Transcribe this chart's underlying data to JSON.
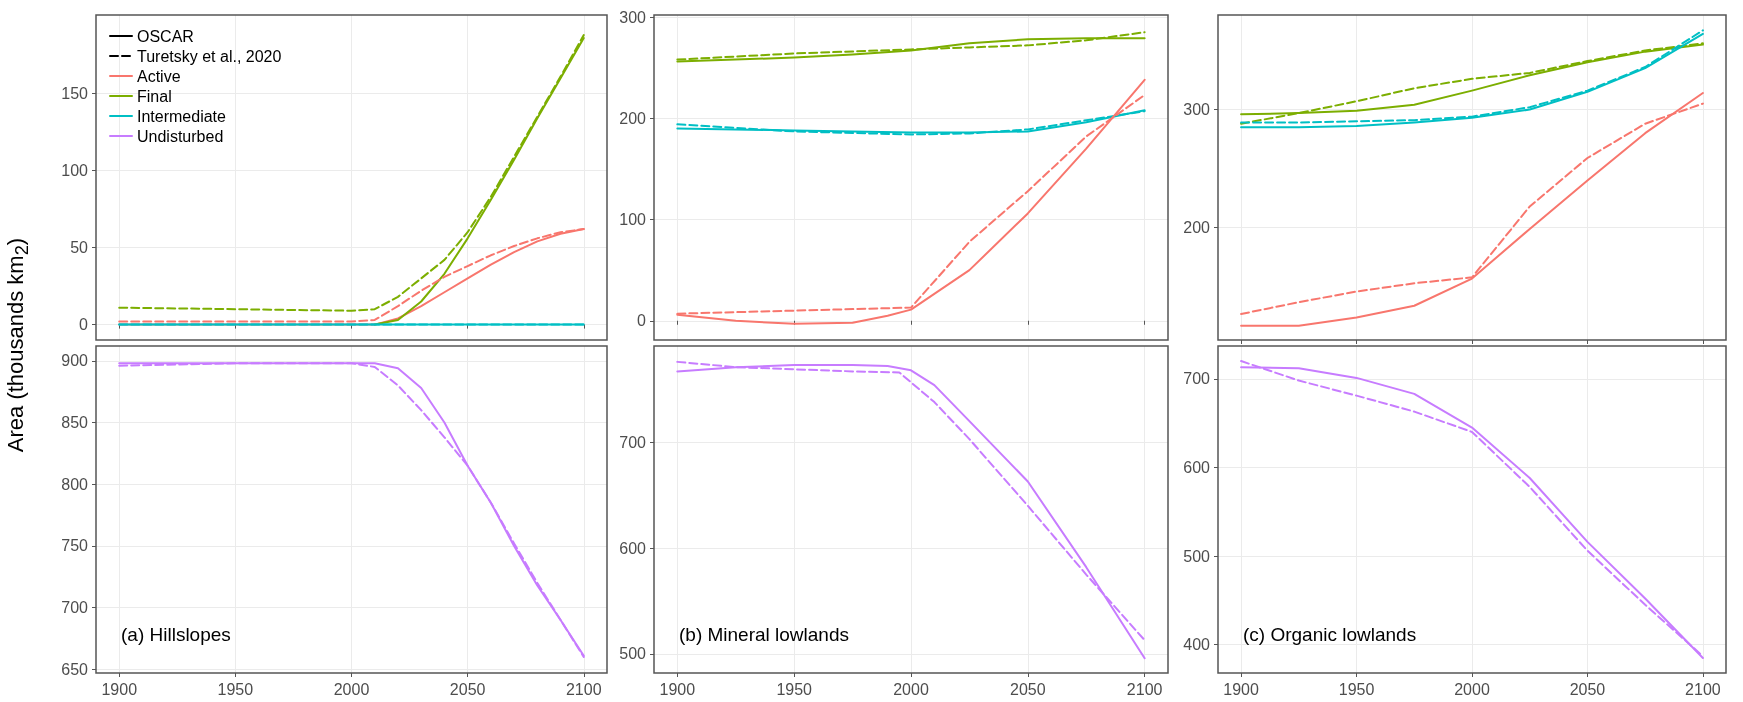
{
  "chart_data": [
    {
      "type": "line",
      "ylabel": "Area (thousands km$_{2}$)",
      "legend": "top left",
      "grid": true,
      "tick_labels": "y",
      "xlim": [
        1890,
        2110
      ],
      "xticks": [
        1900,
        1950,
        2000,
        2050,
        2100
      ],
      "ylim": [
        -10,
        201
      ],
      "yticks": [
        0,
        50,
        100,
        150
      ],
      "series": [
        {
          "name": "OSCAR",
          "color": "#000000",
          "line_style": "solid"
        },
        {
          "name": "Turetsky et al., 2020",
          "color": "#000000",
          "line_style": "dashed"
        },
        {
          "name": "Active",
          "color": "#f8766d",
          "line_style": "solid",
          "x": [
            1900,
            1950,
            2000,
            2010,
            2020,
            2030,
            2040,
            2050,
            2060,
            2070,
            2080,
            2090,
            2100
          ],
          "values": [
            0,
            0,
            0,
            0,
            4,
            12,
            21,
            30,
            39,
            47,
            54,
            59,
            62
          ]
        },
        {
          "name": "Final",
          "color": "#7cae00",
          "line_style": "solid",
          "x": [
            2010,
            2020,
            2030,
            2040,
            2050,
            2060,
            2070,
            2080,
            2090,
            2100
          ],
          "values": [
            0,
            3,
            15,
            33,
            56,
            81,
            107,
            134,
            160,
            186
          ]
        },
        {
          "name": "Intermediate",
          "color": "#00bfc4",
          "line_style": "solid",
          "x": [
            1900,
            2100
          ],
          "values": [
            0,
            0
          ]
        },
        {
          "name": "Undisturbed",
          "color": "#c77cff",
          "line_style": "solid"
        },
        {
          "color": "#f8766d",
          "line_style": "dashed",
          "x": [
            1900,
            1950,
            2000,
            2010,
            2020,
            2030,
            2040,
            2050,
            2060,
            2070,
            2080,
            2090,
            2100
          ],
          "values": [
            2,
            2,
            2,
            3,
            12,
            22,
            31,
            38,
            45,
            51,
            56,
            60,
            62
          ]
        },
        {
          "color": "#7cae00",
          "line_style": "dashed",
          "x": [
            1900,
            1950,
            2000,
            2010,
            2020,
            2030,
            2040,
            2050,
            2060,
            2070,
            2080,
            2090,
            2100
          ],
          "values": [
            11,
            10,
            9,
            10,
            18,
            30,
            42,
            60,
            83,
            109,
            135,
            161,
            188
          ]
        },
        {
          "color": "#00bfc4",
          "line_style": "dashed",
          "x": [
            1900,
            2100
          ],
          "values": [
            0,
            0
          ]
        }
      ]
    },
    {
      "type": "line",
      "grid": true,
      "tick_labels": "y",
      "xlim": [
        1890,
        2110
      ],
      "xticks": [
        1900,
        1950,
        2000,
        2050,
        2100
      ],
      "ylim": [
        -19,
        302
      ],
      "yticks": [
        0,
        100,
        200,
        300
      ],
      "series": [
        {
          "color": "#7cae00",
          "line_style": "solid",
          "x": [
            1900,
            1950,
            1975,
            2000,
            2025,
            2050,
            2075,
            2100
          ],
          "values": [
            256,
            260,
            263,
            267,
            274,
            278,
            279,
            279
          ]
        },
        {
          "color": "#7cae00",
          "line_style": "dashed",
          "x": [
            1900,
            1950,
            2000,
            2025,
            2050,
            2075,
            2100
          ],
          "values": [
            258,
            264,
            268,
            270,
            272,
            277,
            285
          ]
        },
        {
          "color": "#00bfc4",
          "line_style": "solid",
          "x": [
            1900,
            1950,
            2000,
            2025,
            2050,
            2075,
            2100
          ],
          "values": [
            190,
            188,
            186,
            186,
            187,
            196,
            208
          ]
        },
        {
          "color": "#00bfc4",
          "line_style": "dashed",
          "x": [
            1900,
            1950,
            2000,
            2025,
            2050,
            2075,
            2100
          ],
          "values": [
            194,
            187,
            184,
            185,
            189,
            198,
            207
          ]
        },
        {
          "color": "#f8766d",
          "line_style": "solid",
          "x": [
            1900,
            1925,
            1950,
            1975,
            1990,
            2000,
            2025,
            2050,
            2075,
            2100
          ],
          "values": [
            6,
            0,
            -3,
            -2,
            5,
            11,
            50,
            106,
            170,
            238
          ]
        },
        {
          "color": "#f8766d",
          "line_style": "dashed",
          "x": [
            1900,
            2000,
            2025,
            2050,
            2075,
            2100
          ],
          "values": [
            7,
            13,
            78,
            128,
            182,
            223
          ]
        }
      ]
    },
    {
      "type": "line",
      "grid": true,
      "tick_labels": "y",
      "xlim": [
        1890,
        2110
      ],
      "xticks": [
        1900,
        1950,
        2000,
        2050,
        2100
      ],
      "ylim": [
        105,
        380
      ],
      "yticks": [
        200,
        300
      ],
      "series": [
        {
          "color": "#7cae00",
          "line_style": "solid",
          "x": [
            1900,
            1925,
            1950,
            1975,
            2000,
            2025,
            2050,
            2075,
            2100
          ],
          "values": [
            296,
            297,
            299,
            304,
            316,
            329,
            340,
            349,
            355
          ]
        },
        {
          "color": "#7cae00",
          "line_style": "dashed",
          "x": [
            1900,
            1925,
            1950,
            1975,
            2000,
            2025,
            2050,
            2075,
            2100
          ],
          "values": [
            288,
            297,
            307,
            318,
            326,
            331,
            341,
            350,
            356
          ]
        },
        {
          "color": "#00bfc4",
          "line_style": "solid",
          "x": [
            1900,
            1925,
            1950,
            1975,
            2000,
            2025,
            2050,
            2075,
            2100
          ],
          "values": [
            285,
            285,
            286,
            289,
            293,
            300,
            315,
            335,
            364
          ]
        },
        {
          "color": "#00bfc4",
          "line_style": "dashed",
          "x": [
            1900,
            1925,
            1950,
            1975,
            2000,
            2025,
            2050,
            2075,
            2100
          ],
          "values": [
            289,
            289,
            290,
            291,
            294,
            302,
            316,
            336,
            367
          ]
        },
        {
          "color": "#f8766d",
          "line_style": "solid",
          "x": [
            1900,
            1925,
            1950,
            1975,
            2000,
            2025,
            2050,
            2075,
            2100
          ],
          "values": [
            117,
            117,
            124,
            134,
            157,
            199,
            240,
            280,
            314
          ]
        },
        {
          "color": "#f8766d",
          "line_style": "dashed",
          "x": [
            1900,
            1925,
            1950,
            1975,
            2000,
            2025,
            2050,
            2075,
            2100
          ],
          "values": [
            127,
            137,
            146,
            153,
            158,
            218,
            259,
            288,
            305
          ]
        }
      ]
    },
    {
      "type": "line",
      "grid": true,
      "annotations": [
        "(a) Hillslopes"
      ],
      "xlim": [
        1890,
        2110
      ],
      "xticks": [
        1900,
        1950,
        2000,
        2050,
        2100
      ],
      "ylim": [
        647,
        912
      ],
      "yticks": [
        650,
        700,
        750,
        800,
        850,
        900
      ],
      "series": [
        {
          "color": "#c77cff",
          "line_style": "solid",
          "x": [
            1900,
            1950,
            2000,
            2010,
            2020,
            2030,
            2040,
            2050,
            2060,
            2070,
            2080,
            2090,
            2100
          ],
          "values": [
            898,
            898,
            898,
            898,
            894,
            878,
            850,
            815,
            785,
            750,
            718,
            690,
            661
          ]
        },
        {
          "color": "#c77cff",
          "line_style": "dashed",
          "x": [
            1900,
            1950,
            2000,
            2010,
            2020,
            2030,
            2040,
            2050,
            2060,
            2070,
            2080,
            2090,
            2100
          ],
          "values": [
            896,
            898,
            898,
            895,
            880,
            860,
            838,
            815,
            785,
            752,
            720,
            690,
            660
          ]
        }
      ]
    },
    {
      "type": "line",
      "grid": true,
      "annotations": [
        "(b) Mineral lowlands"
      ],
      "xlim": [
        1890,
        2110
      ],
      "xticks": [
        1900,
        1950,
        2000,
        2050,
        2100
      ],
      "ylim": [
        482,
        791
      ],
      "yticks": [
        500,
        600,
        700
      ],
      "series": [
        {
          "color": "#c77cff",
          "line_style": "solid",
          "x": [
            1900,
            1925,
            1950,
            1975,
            1990,
            2000,
            2010,
            2025,
            2050,
            2075,
            2100
          ],
          "values": [
            767,
            771,
            773,
            773,
            772,
            768,
            754,
            720,
            663,
            582,
            496
          ]
        },
        {
          "color": "#c77cff",
          "line_style": "dashed",
          "x": [
            1900,
            1925,
            1950,
            1975,
            1995,
            2010,
            2025,
            2050,
            2075,
            2100
          ],
          "values": [
            776,
            771,
            769,
            767,
            766,
            738,
            703,
            640,
            575,
            513
          ]
        }
      ]
    },
    {
      "type": "line",
      "grid": true,
      "annotations": [
        "(c) Organic lowlands"
      ],
      "xlim": [
        1890,
        2110
      ],
      "xticks": [
        1900,
        1950,
        2000,
        2050,
        2100
      ],
      "ylim": [
        368,
        737
      ],
      "yticks": [
        400,
        500,
        600,
        700
      ],
      "series": [
        {
          "color": "#c77cff",
          "line_style": "solid",
          "x": [
            1900,
            1925,
            1950,
            1975,
            2000,
            2025,
            2050,
            2075,
            2100
          ],
          "values": [
            713,
            712,
            701,
            683,
            645,
            588,
            516,
            452,
            385
          ]
        },
        {
          "color": "#c77cff",
          "line_style": "dashed",
          "x": [
            1900,
            1925,
            1950,
            1975,
            2000,
            2025,
            2050,
            2075,
            2100
          ],
          "values": [
            720,
            698,
            681,
            663,
            640,
            578,
            506,
            445,
            387
          ]
        }
      ]
    }
  ]
}
